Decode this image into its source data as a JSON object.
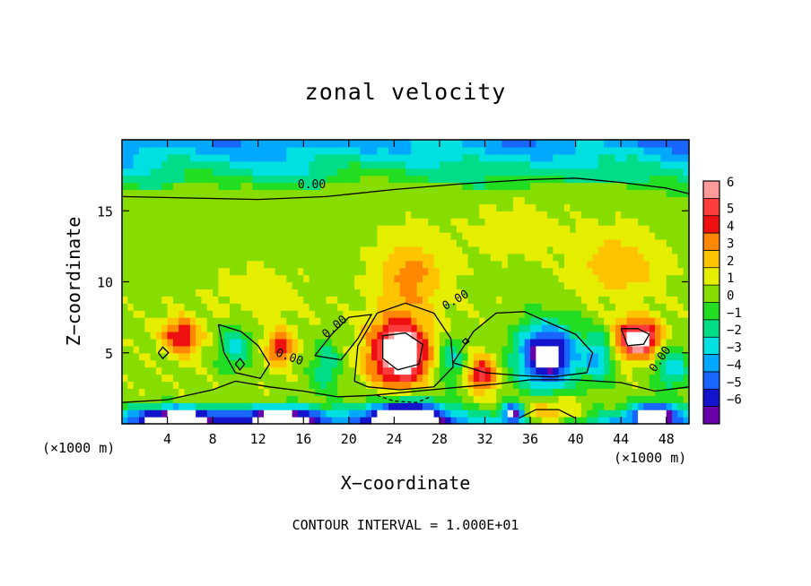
{
  "chart_data": {
    "type": "heatmap",
    "title": "zonal velocity",
    "xlabel": "X−coordinate",
    "ylabel": "Z−coordinate",
    "x_unit": "(×1000 m)",
    "x_unit_right": "(×1000 m)",
    "footnote": "CONTOUR INTERVAL = 1.000E+01",
    "xlim": [
      0,
      50
    ],
    "ylim": [
      0,
      20
    ],
    "x_ticks": [
      4,
      8,
      12,
      16,
      20,
      24,
      28,
      32,
      36,
      40,
      44,
      48
    ],
    "y_ticks": [
      5,
      10,
      15
    ],
    "colorbar": {
      "levels": [
        6,
        5,
        4,
        3,
        2,
        1,
        0,
        -1,
        -2,
        -3,
        -4,
        -5,
        -6
      ],
      "level_labels": [
        "6",
        "5",
        "4",
        "3",
        "2",
        "1",
        "0",
        "−1",
        "−2",
        "−3",
        "−4",
        "−5",
        "−6"
      ],
      "colors": [
        "#ff9a9a",
        "#ff3c3c",
        "#ee1010",
        "#ff8800",
        "#ffc400",
        "#e6ee00",
        "#88dd00",
        "#22dd22",
        "#00dd88",
        "#00e0e0",
        "#00a8ff",
        "#1866ff",
        "#1414cc",
        "#6a00aa"
      ]
    },
    "contour_labels": [
      "0.00",
      "0.00",
      "0.00",
      "0.00",
      "0.00"
    ],
    "features": [
      {
        "name": "upper-negative-band",
        "x": 25,
        "z": 18.3,
        "value": -2.5
      },
      {
        "name": "positive-core-24",
        "x": 24.5,
        "z": 5.0,
        "value": 6.5
      },
      {
        "name": "negative-core-24-bottom",
        "x": 25,
        "z": 0.8,
        "value": -6.5
      },
      {
        "name": "negative-core-38",
        "x": 37.5,
        "z": 4.8,
        "value": -6.5
      },
      {
        "name": "positive-core-45",
        "x": 45.5,
        "z": 6.0,
        "value": 6.2
      },
      {
        "name": "positive-core-32",
        "x": 31.7,
        "z": 3.5,
        "value": 4.5
      },
      {
        "name": "positive-core-5",
        "x": 5.2,
        "z": 6.2,
        "value": 4.0
      },
      {
        "name": "positive-core-14",
        "x": 14.0,
        "z": 5.4,
        "value": 3.8
      },
      {
        "name": "positive-mid-26",
        "x": 25.5,
        "z": 10.5,
        "value": 2.8
      },
      {
        "name": "positive-mid-44",
        "x": 44.0,
        "z": 11.2,
        "value": 2.3
      },
      {
        "name": "negative-low-5",
        "x": 5.0,
        "z": 0.5,
        "value": -5.0
      },
      {
        "name": "negative-low-14",
        "x": 14.0,
        "z": 0.5,
        "value": -5.0
      }
    ]
  }
}
